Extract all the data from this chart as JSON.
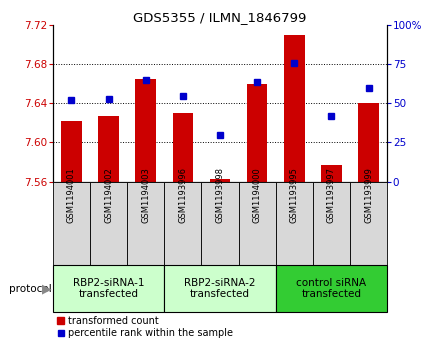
{
  "title": "GDS5355 / ILMN_1846799",
  "samples": [
    "GSM1194001",
    "GSM1194002",
    "GSM1194003",
    "GSM1193996",
    "GSM1193998",
    "GSM1194000",
    "GSM1193995",
    "GSM1193997",
    "GSM1193999"
  ],
  "bar_values": [
    7.622,
    7.627,
    7.665,
    7.63,
    7.563,
    7.66,
    7.71,
    7.577,
    7.64
  ],
  "dot_values": [
    52,
    53,
    65,
    55,
    30,
    64,
    76,
    42,
    60
  ],
  "bar_bottom": 7.56,
  "ylim_left": [
    7.56,
    7.72
  ],
  "ylim_right": [
    0,
    100
  ],
  "yticks_left": [
    7.56,
    7.6,
    7.64,
    7.68,
    7.72
  ],
  "yticks_right": [
    0,
    25,
    50,
    75,
    100
  ],
  "bar_color": "#cc0000",
  "dot_color": "#0000cc",
  "groups": [
    {
      "label": "RBP2-siRNA-1\ntransfected",
      "indices": [
        0,
        1,
        2
      ],
      "color": "#ccffcc"
    },
    {
      "label": "RBP2-siRNA-2\ntransfected",
      "indices": [
        3,
        4,
        5
      ],
      "color": "#ccffcc"
    },
    {
      "label": "control siRNA\ntransfected",
      "indices": [
        6,
        7,
        8
      ],
      "color": "#33cc33"
    }
  ],
  "legend_bar_label": "transformed count",
  "legend_dot_label": "percentile rank within the sample",
  "protocol_label": "protocol",
  "sample_box_color": "#d8d8d8",
  "group1_color": "#ccffcc",
  "group2_color": "#33cc33"
}
